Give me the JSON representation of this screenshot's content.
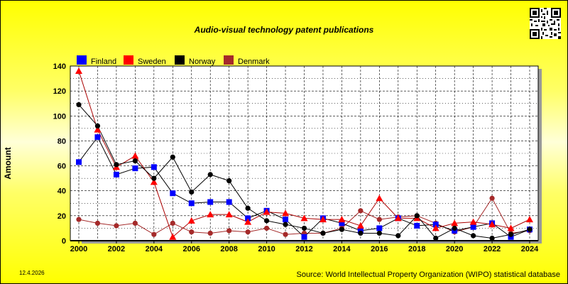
{
  "footer": {
    "date": "12.4.2026",
    "source": "Source: World Intellectual Property Organization (WIPO) statistical database"
  },
  "qr_icon": "qr-code-icon",
  "chart_data": {
    "type": "line",
    "title": "Audio-visual technology patent publications",
    "xlabel": "",
    "ylabel": "Amount",
    "x": [
      2000,
      2001,
      2002,
      2003,
      2004,
      2005,
      2006,
      2007,
      2008,
      2009,
      2010,
      2011,
      2012,
      2013,
      2014,
      2015,
      2016,
      2017,
      2018,
      2019,
      2020,
      2021,
      2022,
      2023,
      2024
    ],
    "x_ticks": [
      2000,
      2002,
      2004,
      2006,
      2008,
      2010,
      2012,
      2014,
      2016,
      2018,
      2020,
      2022,
      2024
    ],
    "xlim": [
      2000,
      2024
    ],
    "ylim": [
      0,
      140
    ],
    "y_ticks": [
      0,
      20,
      40,
      60,
      80,
      100,
      120,
      140
    ],
    "grid": true,
    "legend": "top-left",
    "series": [
      {
        "name": "Finland",
        "color": "#0000ff",
        "line_color": "#000000",
        "marker": "square",
        "values": [
          63,
          83,
          53,
          58,
          59,
          38,
          30,
          31,
          31,
          18,
          24,
          17,
          3,
          18,
          14,
          8,
          10,
          18,
          12,
          13,
          8,
          11,
          14,
          3,
          9
        ]
      },
      {
        "name": "Sweden",
        "color": "#ff0000",
        "line_color": "#aa0000",
        "marker": "triangle",
        "values": [
          136,
          89,
          59,
          68,
          47,
          3,
          16,
          21,
          21,
          15,
          23,
          22,
          18,
          17,
          17,
          12,
          34,
          18,
          18,
          10,
          14,
          15,
          13,
          10,
          17
        ]
      },
      {
        "name": "Norway",
        "color": "#000000",
        "line_color": "#000000",
        "marker": "circle",
        "values": [
          109,
          92,
          61,
          64,
          50,
          67,
          39,
          53,
          48,
          26,
          16,
          13,
          10,
          6,
          9,
          6,
          6,
          4,
          20,
          2,
          10,
          4,
          2,
          5,
          9
        ]
      },
      {
        "name": "Denmark",
        "color": "#a52a2a",
        "line_color": "#a52a2a",
        "marker": "circle",
        "values": [
          17,
          14,
          12,
          14,
          5,
          14,
          7,
          6,
          8,
          7,
          10,
          5,
          6,
          6,
          10,
          24,
          17,
          19,
          20,
          14,
          7,
          11,
          34,
          6,
          8
        ]
      }
    ]
  }
}
